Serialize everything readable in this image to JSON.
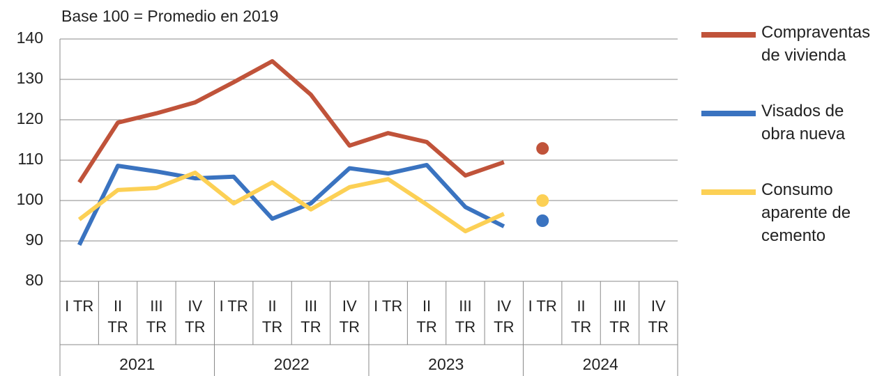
{
  "chart_data": {
    "type": "line",
    "title": "Base 100 = Promedio en 2019",
    "categories": [
      "I TR",
      "II TR",
      "III TR",
      "IV TR",
      "I TR",
      "II TR",
      "III TR",
      "IV TR",
      "I TR",
      "II TR",
      "III TR",
      "IV TR",
      "I TR",
      "II TR",
      "III TR",
      "IV TR"
    ],
    "category_groups": [
      "2021",
      "2022",
      "2023",
      "2024"
    ],
    "series": [
      {
        "name": "Compraventas de vivienda",
        "color": "#c0533a",
        "values": [
          104.5,
          119.3,
          121.6,
          124.3,
          129.3,
          134.5,
          126.2,
          113.6,
          116.7,
          114.5,
          106.2,
          109.5,
          null,
          null,
          null,
          null
        ],
        "dot_values": [
          null,
          null,
          null,
          null,
          null,
          null,
          null,
          null,
          null,
          null,
          null,
          null,
          112.9,
          null,
          null,
          null
        ]
      },
      {
        "name": "Visados de obra nueva",
        "color": "#3a73c0",
        "values": [
          89,
          108.6,
          107.2,
          105.5,
          105.9,
          95.5,
          99.3,
          108,
          106.7,
          108.8,
          98.4,
          93.6,
          null,
          null,
          null,
          null
        ],
        "dot_values": [
          null,
          null,
          null,
          null,
          null,
          null,
          null,
          null,
          null,
          null,
          null,
          null,
          95,
          null,
          null,
          null
        ]
      },
      {
        "name": "Consumo aparente de cemento",
        "color": "#fcd055",
        "values": [
          95.3,
          102.6,
          103.1,
          106.9,
          99.3,
          104.5,
          97.8,
          103.3,
          105.3,
          99,
          92.4,
          96.7,
          null,
          null,
          null,
          null
        ],
        "dot_values": [
          null,
          null,
          null,
          null,
          null,
          null,
          null,
          null,
          null,
          null,
          null,
          null,
          100,
          null,
          null,
          null
        ]
      }
    ],
    "ylim": [
      80,
      140
    ],
    "yticks": [
      80,
      90,
      100,
      110,
      120,
      130,
      140
    ],
    "grid": true,
    "legend": "right"
  }
}
